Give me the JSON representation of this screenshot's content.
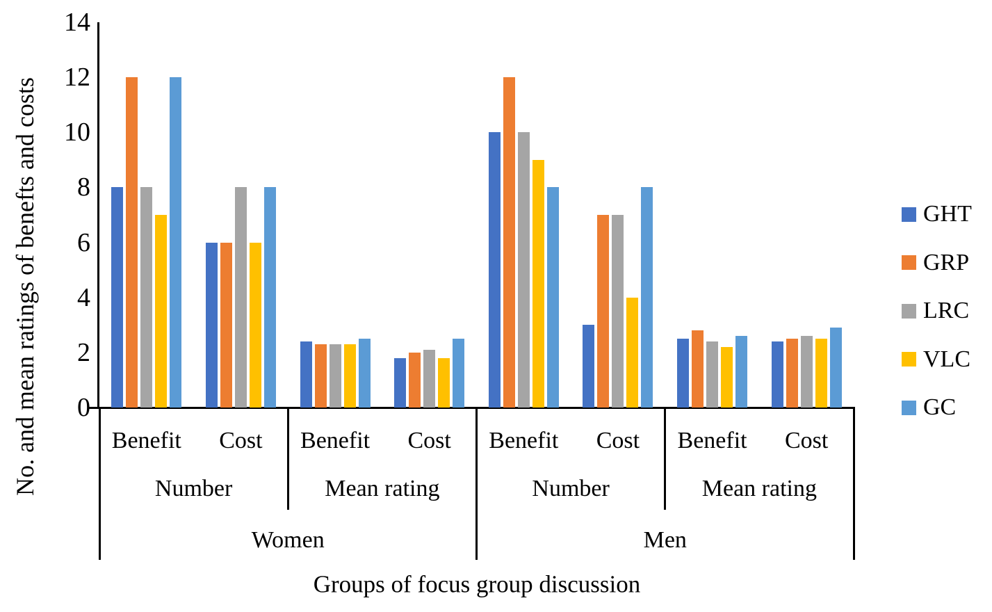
{
  "chart_data": {
    "type": "bar",
    "title": "",
    "xlabel": "Groups of focus group discussion",
    "ylabel": "No. and mean ratings of benefts and costs",
    "ylim": [
      0,
      14
    ],
    "yticks": [
      0,
      2,
      4,
      6,
      8,
      10,
      12,
      14
    ],
    "grid": false,
    "legend_position": "right",
    "series": [
      {
        "name": "GHT",
        "color": "#4472C4",
        "values": [
          8,
          6,
          2.4,
          1.8,
          10,
          3,
          2.5,
          2.4
        ]
      },
      {
        "name": "GRP",
        "color": "#ED7D31",
        "values": [
          12,
          6,
          2.3,
          2.0,
          12,
          7,
          2.8,
          2.5
        ]
      },
      {
        "name": "LRC",
        "color": "#A5A5A5",
        "values": [
          8,
          8,
          2.3,
          2.1,
          10,
          7,
          2.4,
          2.6
        ]
      },
      {
        "name": "VLC",
        "color": "#FFC000",
        "values": [
          7,
          6,
          2.3,
          1.8,
          9,
          4,
          2.2,
          2.5
        ]
      },
      {
        "name": "GC",
        "color": "#5B9BD5",
        "values": [
          12,
          8,
          2.5,
          2.5,
          8,
          8,
          2.6,
          2.9
        ]
      }
    ],
    "categories": [
      "Benefit",
      "Cost",
      "Benefit",
      "Cost",
      "Benefit",
      "Cost",
      "Benefit",
      "Cost"
    ],
    "category_groups_measure": [
      {
        "label": "Number",
        "span": 2
      },
      {
        "label": "Mean rating",
        "span": 2
      },
      {
        "label": "Number",
        "span": 2
      },
      {
        "label": "Mean rating",
        "span": 2
      }
    ],
    "category_groups_gender": [
      {
        "label": "Women",
        "span": 4
      },
      {
        "label": "Men",
        "span": 4
      }
    ]
  }
}
